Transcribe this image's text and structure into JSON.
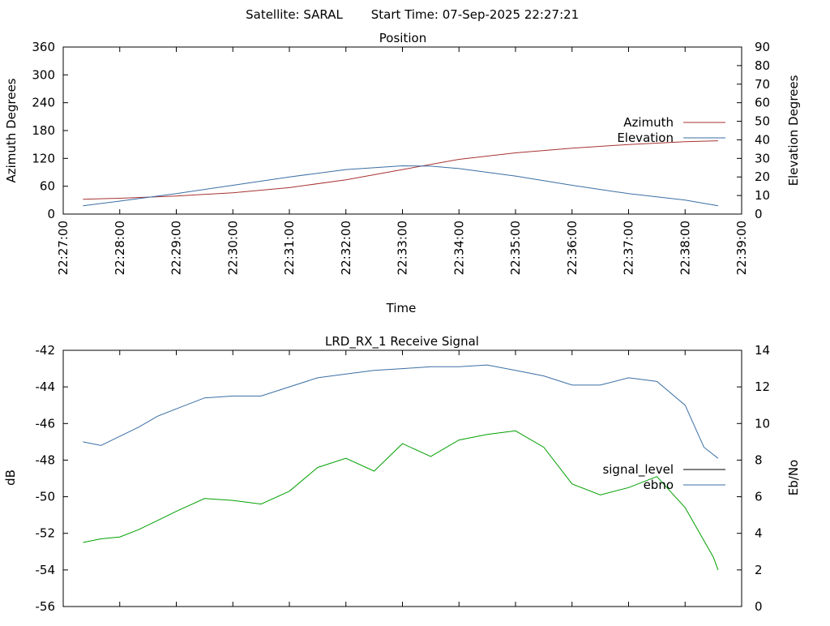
{
  "header": {
    "satellite": "Satellite: SARAL",
    "start_time": "Start Time: 07-Sep-2025 22:27:21"
  },
  "chart_data": [
    {
      "type": "line",
      "title": "Position",
      "xlabel": "Time",
      "ylabel": "Azimuth Degrees",
      "y2label": "Elevation Degrees",
      "x_ticks": [
        "22:27:00",
        "22:28:00",
        "22:29:00",
        "22:30:00",
        "22:31:00",
        "22:32:00",
        "22:33:00",
        "22:34:00",
        "22:35:00",
        "22:36:00",
        "22:37:00",
        "22:38:00",
        "22:39:00"
      ],
      "xlim": [
        "22:27:00",
        "22:39:00"
      ],
      "ylim": [
        0,
        360
      ],
      "y_ticks": [
        0,
        60,
        120,
        180,
        240,
        300,
        360
      ],
      "y2lim": [
        0,
        90
      ],
      "y2_ticks": [
        0,
        10,
        20,
        30,
        40,
        50,
        60,
        70,
        80,
        90
      ],
      "legend_position": "right",
      "grid": false,
      "series": [
        {
          "name": "Azimuth",
          "axis": "left",
          "color": "#a83232",
          "x": [
            "22:27:21",
            "22:28:00",
            "22:29:00",
            "22:30:00",
            "22:31:00",
            "22:32:00",
            "22:33:00",
            "22:34:00",
            "22:35:00",
            "22:36:00",
            "22:37:00",
            "22:38:00",
            "22:38:35"
          ],
          "y": [
            32,
            34,
            39,
            46,
            57,
            74,
            96,
            118,
            132,
            142,
            150,
            156,
            158
          ]
        },
        {
          "name": "Elevation",
          "axis": "right",
          "color": "#3a6ea5",
          "x": [
            "22:27:21",
            "22:28:00",
            "22:29:00",
            "22:30:00",
            "22:31:00",
            "22:32:00",
            "22:33:00",
            "22:33:30",
            "22:34:00",
            "22:35:00",
            "22:36:00",
            "22:37:00",
            "22:38:00",
            "22:38:35"
          ],
          "y": [
            4.5,
            7,
            11,
            15.5,
            20,
            24,
            26,
            25.8,
            24.5,
            20.5,
            15.5,
            11,
            7.5,
            4.5
          ]
        }
      ]
    },
    {
      "type": "line",
      "title": "LRD_RX_1 Receive Signal",
      "ylabel": "dB",
      "y2label": "Eb/No",
      "xlim": [
        "22:27:00",
        "22:39:00"
      ],
      "ylim": [
        -56,
        -42
      ],
      "y_ticks": [
        -56,
        -54,
        -52,
        -50,
        -48,
        -46,
        -44,
        -42
      ],
      "y2lim": [
        0,
        14
      ],
      "y2_ticks": [
        0,
        2,
        4,
        6,
        8,
        10,
        12,
        14
      ],
      "legend_position": "right",
      "grid": false,
      "series": [
        {
          "name": "signal_level",
          "axis": "left",
          "color": "#00a000",
          "legend_color": "#000000",
          "x": [
            "22:27:21",
            "22:27:40",
            "22:28:00",
            "22:28:20",
            "22:28:40",
            "22:29:00",
            "22:29:30",
            "22:30:00",
            "22:30:30",
            "22:31:00",
            "22:31:30",
            "22:32:00",
            "22:32:30",
            "22:33:00",
            "22:33:30",
            "22:34:00",
            "22:34:30",
            "22:35:00",
            "22:35:30",
            "22:36:00",
            "22:36:30",
            "22:37:00",
            "22:37:30",
            "22:38:00",
            "22:38:30",
            "22:38:35"
          ],
          "y": [
            -52.5,
            -52.3,
            -52.2,
            -51.8,
            -51.3,
            -50.8,
            -50.1,
            -50.2,
            -50.4,
            -49.7,
            -48.4,
            -47.9,
            -48.6,
            -47.1,
            -47.8,
            -46.9,
            -46.6,
            -46.4,
            -47.3,
            -49.3,
            -49.9,
            -49.5,
            -48.9,
            -50.6,
            -53.3,
            -54.0
          ]
        },
        {
          "name": "ebno",
          "axis": "right",
          "color": "#3a6ea5",
          "x": [
            "22:27:21",
            "22:27:40",
            "22:28:00",
            "22:28:20",
            "22:28:40",
            "22:29:00",
            "22:29:30",
            "22:30:00",
            "22:30:30",
            "22:31:00",
            "22:31:30",
            "22:32:00",
            "22:32:30",
            "22:33:00",
            "22:33:30",
            "22:34:00",
            "22:34:30",
            "22:35:00",
            "22:35:30",
            "22:36:00",
            "22:36:30",
            "22:37:00",
            "22:37:30",
            "22:38:00",
            "22:38:20",
            "22:38:35"
          ],
          "y": [
            9.0,
            8.8,
            9.3,
            9.8,
            10.4,
            10.8,
            11.4,
            11.5,
            11.5,
            12.0,
            12.5,
            12.7,
            12.9,
            13.0,
            13.1,
            13.1,
            13.2,
            12.9,
            12.6,
            12.1,
            12.1,
            12.5,
            12.3,
            11.0,
            8.7,
            8.1
          ]
        }
      ]
    }
  ]
}
